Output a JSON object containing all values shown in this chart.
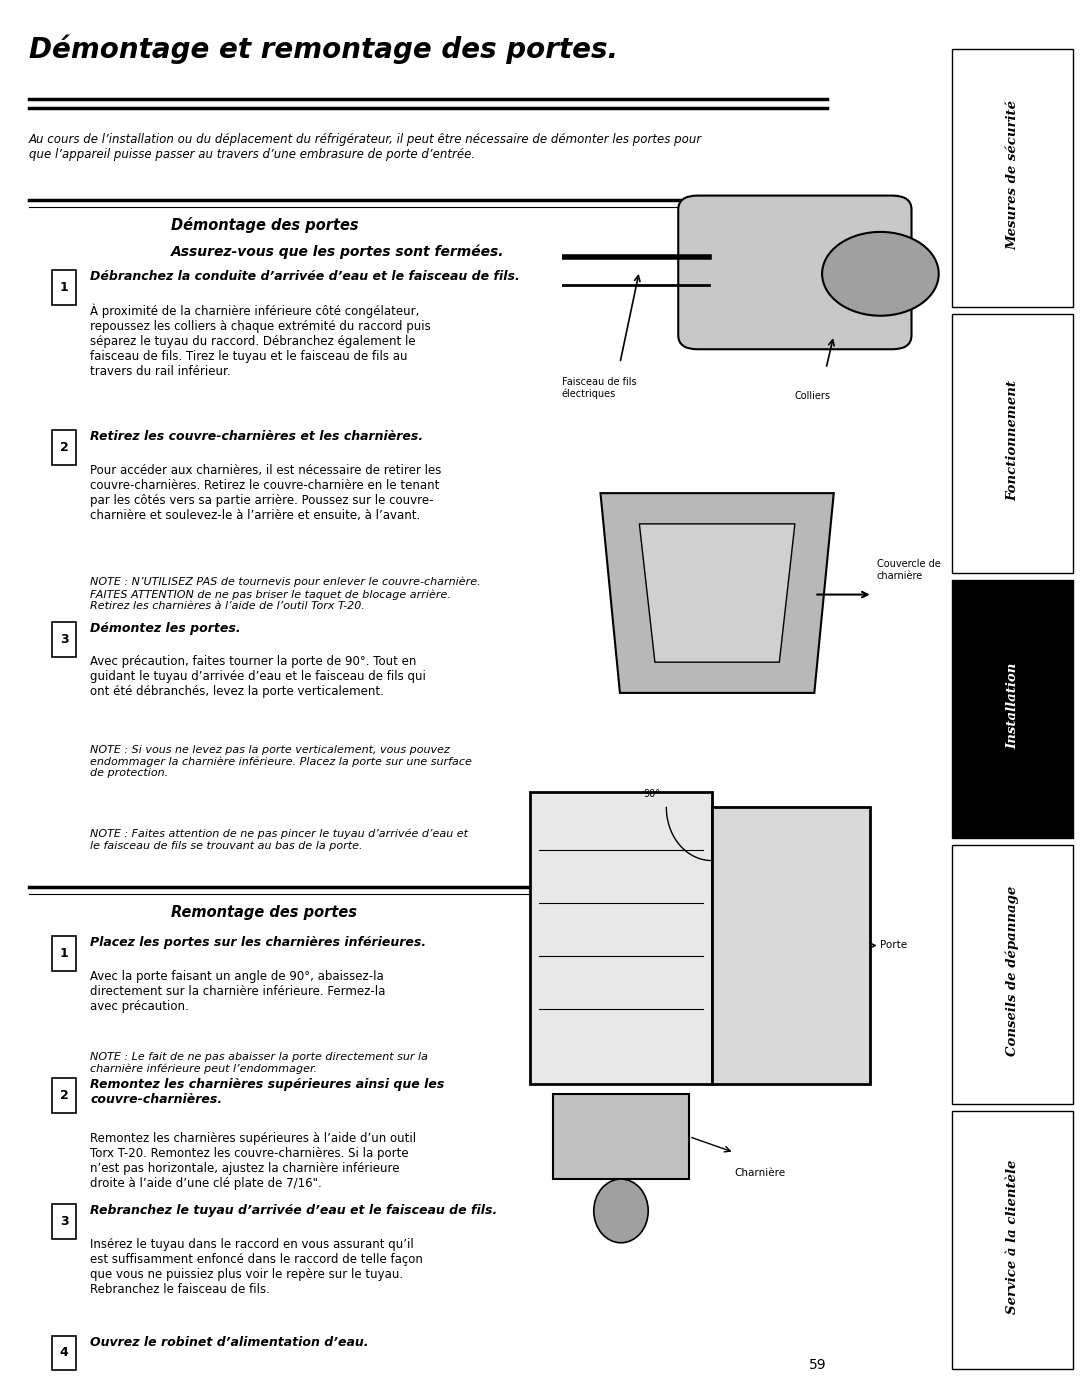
{
  "title": "Démontage et remontage des portes.",
  "intro_text": "Au cours de l’installation ou du déplacement du réfrigérateur, il peut être nécessaire de démonter les portes pour\nque l’appareil puisse passer au travers d’une embrasure de porte d’entrée.",
  "section1_title": "Démontage des portes",
  "section1_subtitle": "Assurez-vous que les portes sont fermées.",
  "step1_bold": "Débranchez la conduite d’arrivée d’eau et le faisceau de fils.",
  "step1_text": "À proximité de la charnière inférieure côté congélateur,\nrepoussez les colliers à chaque extrémité du raccord puis\nséparez le tuyau du raccord. Débranchez également le\nfaisceau de fils. Tirez le tuyau et le faisceau de fils au\ntravers du rail inférieur.",
  "step2_bold": "Retirez les couvre-charnières et les charnières.",
  "step2_text": "Pour accéder aux charnières, il est nécessaire de retirer les\ncouvre-charnières. Retirez le couvre-charnière en le tenant\npar les côtés vers sa partie arrière. Poussez sur le couvre-\ncharnière et soulevez-le à l’arrière et ensuite, à l’avant.",
  "step2_note": "NOTE : N’UTILISEZ PAS de tournevis pour enlever le couvre-charnière.\nFAITES ATTENTION de ne pas briser le taquet de blocage arrière.\nRetirez les charnières à l’aide de l’outil Torx T-20.",
  "step3_bold": "Démontez les portes.",
  "step3_text": "Avec précaution, faites tourner la porte de 90°. Tout en\nguidant le tuyau d’arrivée d’eau et le faisceau de fils qui\nont été débranchés, levez la porte verticalement.",
  "step3_note1": "NOTE : Si vous ne levez pas la porte verticalement, vous pouvez\nendommager la charnière inférieure. Placez la porte sur une surface\nde protection.",
  "step3_note2": "NOTE : Faites attention de ne pas pincer le tuyau d’arrivée d’eau et\nle faisceau de fils se trouvant au bas de la porte.",
  "section2_title": "Remontage des portes",
  "rstep1_bold": "Placez les portes sur les charnières inférieures.",
  "rstep1_text": "Avec la porte faisant un angle de 90°, abaissez-la\ndirectement sur la charnière inférieure. Fermez-la\navec précaution.",
  "rstep1_note": "NOTE : Le fait de ne pas abaisser la porte directement sur la\ncharnière inférieure peut l’endommager.",
  "rstep2_bold": "Remontez les charnières supérieures ainsi que les\ncouvre-charnières.",
  "rstep2_text": "Remontez les charnières supérieures à l’aide d’un outil\nTorx T-20. Remontez les couvre-charnières. Si la porte\nn’est pas horizontale, ajustez la charnière inférieure\ndroite à l’aide d’une clé plate de 7/16\".",
  "rstep3_bold": "Rebranchez le tuyau d’arrivée d’eau et le faisceau de fils.",
  "rstep3_text": "Insérez le tuyau dans le raccord en vous assurant qu’il\nest suffisamment enfoncé dans le raccord de telle façon\nque vous ne puissiez plus voir le repère sur le tuyau.\nRebranchez le faisceau de fils.",
  "rstep4_bold": "Ouvrez le robinet d’alimentation d’eau.",
  "sidebar_labels": [
    "Mesures de sécurité",
    "Fonctionnement",
    "Installation",
    "Conseils de dépannage",
    "Service à la clientèle"
  ],
  "sidebar_active": 2,
  "page_number": "59",
  "img_label1": "Faisceau de fils\nélectriques",
  "img_label2": "Colliers",
  "img_label3": "Couvercle de\ncharnière",
  "img_label4": "Porte",
  "img_label5": "Charnière",
  "bg_color": "#ffffff",
  "text_color": "#000000",
  "sidebar_bg": "#ffffff",
  "sidebar_active_bg": "#000000",
  "sidebar_active_text": "#ffffff",
  "sidebar_border": "#000000"
}
